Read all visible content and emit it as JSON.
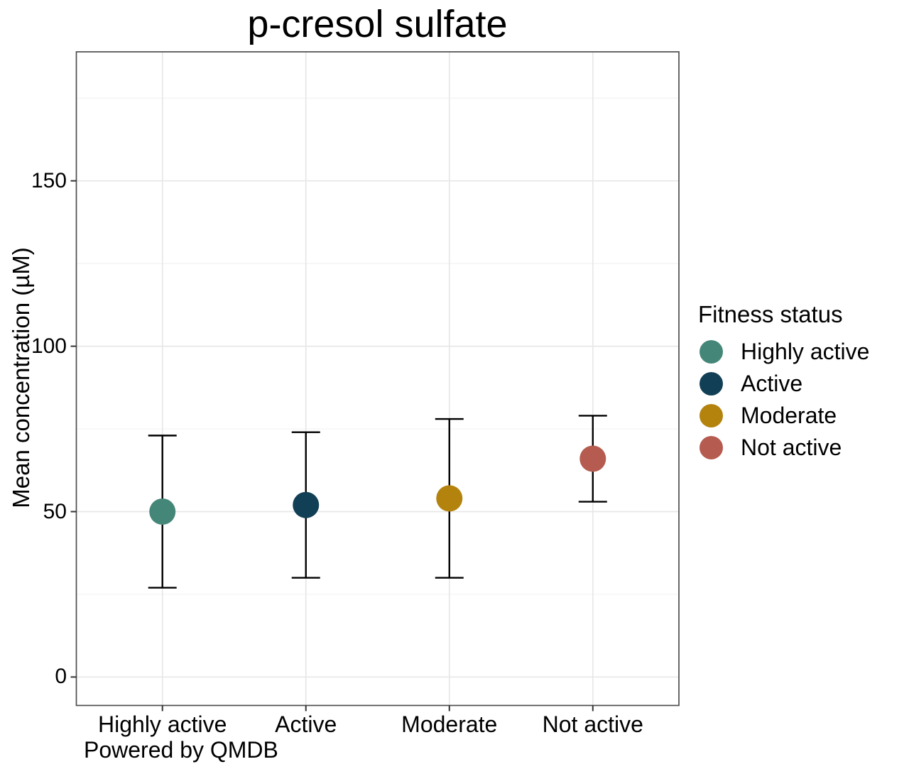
{
  "chart_data": {
    "type": "scatter",
    "title": "p-cresol sulfate",
    "xlabel": "",
    "ylabel": "Mean concentration (µM)",
    "caption": "Powered by QMDB",
    "categories": [
      "Highly active",
      "Active",
      "Moderate",
      "Not active"
    ],
    "series": [
      {
        "name": "Highly active",
        "mean": 50,
        "lower": 27,
        "upper": 73,
        "color": "#448778"
      },
      {
        "name": "Active",
        "mean": 52,
        "lower": 30,
        "upper": 74,
        "color": "#113f55"
      },
      {
        "name": "Moderate",
        "mean": 54,
        "lower": 30,
        "upper": 78,
        "color": "#b3830d"
      },
      {
        "name": "Not active",
        "mean": 66,
        "lower": 53,
        "upper": 79,
        "color": "#b55b4f"
      }
    ],
    "error_bar_meaning": "mean with lower/upper interval caps",
    "ylim": [
      -8.6,
      189
    ],
    "yticks": [
      0,
      50,
      100,
      150
    ],
    "yminor": [
      25,
      75,
      125,
      175
    ],
    "grid": true,
    "legend": {
      "title": "Fitness status",
      "position": "right"
    }
  }
}
